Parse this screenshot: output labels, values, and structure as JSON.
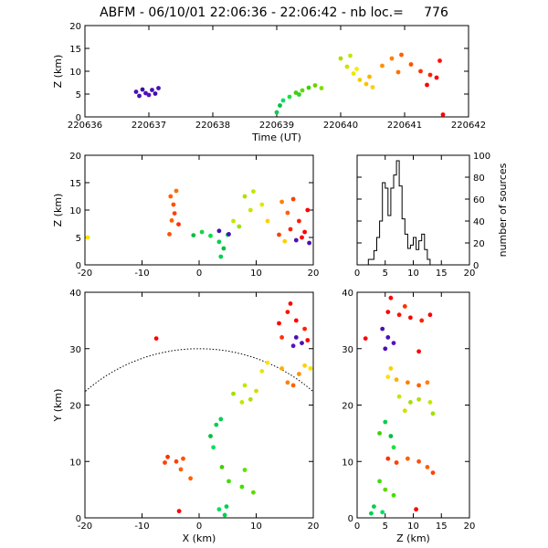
{
  "title": "ABFM - 06/10/01 22:06:36 - 22:06:42 - nb loc.=     776",
  "chart_data": [
    {
      "id": "time-height",
      "type": "scatter",
      "xlabel": "Time (UT)",
      "ylabel": "Z (km)",
      "xlim": [
        220636,
        220642
      ],
      "ylim": [
        0,
        20
      ],
      "xticks": [
        "220636",
        "220637",
        "220638",
        "220639",
        "220640",
        "220641",
        "220642"
      ],
      "yticks": [
        "0",
        "5",
        "10",
        "15",
        "20"
      ],
      "points": [
        [
          220636.8,
          5.5,
          "#4b0fb4"
        ],
        [
          220636.85,
          4.6,
          "#4b0fb4"
        ],
        [
          220636.9,
          6.0,
          "#3d0da8"
        ],
        [
          220636.95,
          5.2,
          "#4b0fb4"
        ],
        [
          220637.0,
          4.8,
          "#5a10c0"
        ],
        [
          220637.05,
          5.9,
          "#4b0fb4"
        ],
        [
          220637.1,
          5.1,
          "#3d0da8"
        ],
        [
          220637.15,
          6.3,
          "#4b0fb4"
        ],
        [
          220639.0,
          1.0,
          "#00d050"
        ],
        [
          220639.05,
          2.5,
          "#00c040"
        ],
        [
          220639.1,
          3.6,
          "#00e060"
        ],
        [
          220639.2,
          4.4,
          "#20e040"
        ],
        [
          220639.3,
          5.3,
          "#40d000"
        ],
        [
          220639.4,
          5.8,
          "#60d800"
        ],
        [
          220639.5,
          6.4,
          "#40d000"
        ],
        [
          220639.6,
          6.9,
          "#6fd000"
        ],
        [
          220639.7,
          6.3,
          "#80e000"
        ],
        [
          220639.35,
          4.9,
          "#30d030"
        ],
        [
          220640.0,
          12.8,
          "#a6e000"
        ],
        [
          220640.1,
          11.0,
          "#d0e000"
        ],
        [
          220640.2,
          9.5,
          "#e8e800"
        ],
        [
          220640.3,
          8.1,
          "#f0d000"
        ],
        [
          220640.4,
          7.2,
          "#ffc000"
        ],
        [
          220640.5,
          6.5,
          "#ffd000"
        ],
        [
          220640.15,
          13.4,
          "#c0e800"
        ],
        [
          220640.25,
          10.5,
          "#f0f000"
        ],
        [
          220640.45,
          8.8,
          "#ffb000"
        ],
        [
          220640.65,
          11.2,
          "#ff9000"
        ],
        [
          220640.8,
          12.8,
          "#ff8000"
        ],
        [
          220640.95,
          13.6,
          "#ff6000"
        ],
        [
          220641.1,
          11.5,
          "#ff5000"
        ],
        [
          220641.25,
          10.0,
          "#ff3000"
        ],
        [
          220641.4,
          9.2,
          "#ff2000"
        ],
        [
          220641.5,
          8.6,
          "#ff0000"
        ],
        [
          220641.55,
          12.3,
          "#ff1000"
        ],
        [
          220640.9,
          9.8,
          "#ff7000"
        ],
        [
          220641.35,
          7.0,
          "#ff0000"
        ],
        [
          220641.6,
          0.5,
          "#ff0000"
        ]
      ]
    },
    {
      "id": "x-height",
      "type": "scatter",
      "xlabel": "",
      "ylabel": "Z (km)",
      "xlim": [
        -20,
        20
      ],
      "ylim": [
        0,
        20
      ],
      "xticks": [
        "-20",
        "-10",
        "0",
        "10",
        "20"
      ],
      "yticks": [
        "0",
        "5",
        "10",
        "15",
        "20"
      ],
      "points": [
        [
          -5,
          12.5,
          "#ff6000"
        ],
        [
          -4.5,
          11.0,
          "#ff5000"
        ],
        [
          -4.3,
          9.4,
          "#ff4000"
        ],
        [
          -4.8,
          8.1,
          "#ff6000"
        ],
        [
          -5.2,
          5.6,
          "#ff5000"
        ],
        [
          -3.6,
          7.4,
          "#ff3000"
        ],
        [
          -4.0,
          13.5,
          "#ff7000"
        ],
        [
          -1.0,
          5.4,
          "#00c040"
        ],
        [
          0.5,
          6.0,
          "#20d040"
        ],
        [
          2.0,
          5.3,
          "#00e040"
        ],
        [
          3.5,
          4.2,
          "#00d050"
        ],
        [
          4.3,
          3.0,
          "#00c040"
        ],
        [
          5.0,
          5.5,
          "#00e060"
        ],
        [
          3.8,
          1.5,
          "#00d050"
        ],
        [
          3.5,
          6.2,
          "#4b0fb4"
        ],
        [
          5.2,
          5.6,
          "#4b0fb4"
        ],
        [
          7.0,
          7.0,
          "#a0e000"
        ],
        [
          6.0,
          8.0,
          "#c0e800"
        ],
        [
          8.0,
          12.5,
          "#b0e000"
        ],
        [
          9.5,
          13.4,
          "#c0e800"
        ],
        [
          11.0,
          11.0,
          "#e0e800"
        ],
        [
          9.0,
          10.0,
          "#d0e000"
        ],
        [
          12.0,
          8.0,
          "#ffd000"
        ],
        [
          14.5,
          11.5,
          "#ff8000"
        ],
        [
          15.5,
          9.5,
          "#ff6000"
        ],
        [
          16.5,
          12.0,
          "#ff4000"
        ],
        [
          17.5,
          8.0,
          "#ff2000"
        ],
        [
          18.5,
          6.0,
          "#ff0000"
        ],
        [
          19.0,
          10.0,
          "#ff0000"
        ],
        [
          16.0,
          6.5,
          "#ff2000"
        ],
        [
          14.0,
          5.5,
          "#ff4000"
        ],
        [
          17.0,
          4.5,
          "#4b0fb4"
        ],
        [
          19.3,
          4.0,
          "#4b0fb4"
        ],
        [
          15.0,
          4.3,
          "#ffd000"
        ],
        [
          18.0,
          5.0,
          "#ff0000"
        ],
        [
          -19.5,
          5.0,
          "#ffe000"
        ]
      ]
    },
    {
      "id": "height-histogram",
      "type": "line",
      "xlabel": "",
      "ylabel": "number of sources",
      "xlim": [
        0,
        20
      ],
      "ylim": [
        0,
        100
      ],
      "xticks": [
        "0",
        "5",
        "10",
        "15",
        "20"
      ],
      "yticks": [
        "0",
        "20",
        "40",
        "60",
        "80",
        "100"
      ],
      "x": [
        2.0,
        3.0,
        3.5,
        4.0,
        4.5,
        5.0,
        5.5,
        6.0,
        6.5,
        7.0,
        7.5,
        8.0,
        8.5,
        9.0,
        9.5,
        10.0,
        10.5,
        11.0,
        11.5,
        12.0,
        12.5,
        13.0
      ],
      "values": [
        5,
        13,
        25,
        40,
        75,
        70,
        45,
        70,
        82,
        95,
        72,
        42,
        28,
        15,
        18,
        25,
        14,
        22,
        28,
        14,
        5,
        0
      ]
    },
    {
      "id": "plan-view",
      "type": "scatter",
      "xlabel": "X (km)",
      "ylabel": "Y (km)",
      "xlim": [
        -20,
        20
      ],
      "ylim": [
        0,
        40
      ],
      "xticks": [
        "-20",
        "-10",
        "0",
        "10",
        "20"
      ],
      "yticks": [
        "0",
        "10",
        "20",
        "30",
        "40"
      ],
      "points": [
        [
          -5.5,
          10.8,
          "#ff3000"
        ],
        [
          -4.0,
          10.0,
          "#ff4000"
        ],
        [
          -3.2,
          8.6,
          "#ff6000"
        ],
        [
          -2.8,
          10.5,
          "#ff5000"
        ],
        [
          -6.0,
          9.8,
          "#ff4000"
        ],
        [
          -1.5,
          7.0,
          "#ff6000"
        ],
        [
          -3.5,
          1.2,
          "#ff0000"
        ],
        [
          2.0,
          14.5,
          "#00c040"
        ],
        [
          3.0,
          16.5,
          "#00d050"
        ],
        [
          2.5,
          12.5,
          "#00e060"
        ],
        [
          3.8,
          17.5,
          "#00d050"
        ],
        [
          4.0,
          9.0,
          "#40d000"
        ],
        [
          5.2,
          6.5,
          "#40e000"
        ],
        [
          7.5,
          5.5,
          "#40e000"
        ],
        [
          9.5,
          4.5,
          "#60d800"
        ],
        [
          4.8,
          2.0,
          "#00d050"
        ],
        [
          3.5,
          1.5,
          "#00e060"
        ],
        [
          4.5,
          0.5,
          "#00d050"
        ],
        [
          8.0,
          8.5,
          "#60e000"
        ],
        [
          6.0,
          22.0,
          "#a0e000"
        ],
        [
          7.5,
          20.5,
          "#c0e800"
        ],
        [
          9.0,
          21.0,
          "#b0e000"
        ],
        [
          10.0,
          22.5,
          "#d0e000"
        ],
        [
          8.0,
          23.5,
          "#c0e800"
        ],
        [
          11.0,
          26.0,
          "#e8e800"
        ],
        [
          12.0,
          27.5,
          "#ffe000"
        ],
        [
          14.5,
          26.5,
          "#ffb000"
        ],
        [
          15.5,
          24.0,
          "#ff8000"
        ],
        [
          16.5,
          23.5,
          "#ff6000"
        ],
        [
          17.5,
          25.5,
          "#ff9000"
        ],
        [
          18.5,
          27.0,
          "#ffd000"
        ],
        [
          19.5,
          26.5,
          "#ffe000"
        ],
        [
          14.0,
          34.5,
          "#ff0000"
        ],
        [
          15.5,
          36.5,
          "#ff1000"
        ],
        [
          17.0,
          35.0,
          "#ff0000"
        ],
        [
          18.5,
          33.5,
          "#ff2000"
        ],
        [
          16.0,
          38.0,
          "#ff0000"
        ],
        [
          19.0,
          31.5,
          "#ff0000"
        ],
        [
          14.5,
          32.0,
          "#ff3000"
        ],
        [
          17.0,
          32.0,
          "#4b0fb4"
        ],
        [
          16.5,
          30.5,
          "#5a10c0"
        ],
        [
          18.0,
          31.0,
          "#4b0fb4"
        ],
        [
          -7.5,
          31.8,
          "#ff0000"
        ]
      ],
      "arc": {
        "center": [
          0,
          0
        ],
        "radius": 30
      }
    },
    {
      "id": "z-y-view",
      "type": "scatter",
      "xlabel": "Z (km)",
      "ylabel": "",
      "xlim": [
        0,
        20
      ],
      "ylim": [
        0,
        40
      ],
      "xticks": [
        "0",
        "5",
        "10",
        "15",
        "20"
      ],
      "yticks": [
        "0",
        "10",
        "20",
        "30",
        "40"
      ],
      "points": [
        [
          6.0,
          39.0,
          "#ff0000"
        ],
        [
          7.5,
          36.0,
          "#ff1000"
        ],
        [
          9.5,
          35.5,
          "#ff0000"
        ],
        [
          11.5,
          35.0,
          "#ff2000"
        ],
        [
          13.0,
          36.0,
          "#ff0000"
        ],
        [
          8.5,
          37.5,
          "#ff3000"
        ],
        [
          5.5,
          36.5,
          "#ff0000"
        ],
        [
          11.0,
          29.5,
          "#ff0000"
        ],
        [
          4.5,
          33.5,
          "#4b0fb4"
        ],
        [
          5.5,
          32.0,
          "#4b0fb4"
        ],
        [
          6.5,
          31.0,
          "#5a10c0"
        ],
        [
          5.0,
          30.0,
          "#4b0fb4"
        ],
        [
          6.0,
          26.5,
          "#ffd000"
        ],
        [
          7.0,
          24.5,
          "#ffb000"
        ],
        [
          9.0,
          24.0,
          "#ff8000"
        ],
        [
          11.0,
          23.5,
          "#ff6000"
        ],
        [
          12.5,
          24.0,
          "#ff8000"
        ],
        [
          5.5,
          25.0,
          "#ffe000"
        ],
        [
          7.5,
          21.5,
          "#c0e800"
        ],
        [
          9.5,
          20.5,
          "#a0e000"
        ],
        [
          11.0,
          21.0,
          "#b0e000"
        ],
        [
          13.0,
          20.5,
          "#c0e800"
        ],
        [
          8.5,
          19.0,
          "#d0e000"
        ],
        [
          13.5,
          18.5,
          "#a0e000"
        ],
        [
          5.0,
          17.0,
          "#00d050"
        ],
        [
          6.0,
          14.5,
          "#00c040"
        ],
        [
          6.5,
          12.5,
          "#20e040"
        ],
        [
          4.0,
          15.0,
          "#40d000"
        ],
        [
          5.5,
          10.5,
          "#ff3000"
        ],
        [
          7.0,
          9.8,
          "#ff4000"
        ],
        [
          9.0,
          10.5,
          "#ff6000"
        ],
        [
          11.0,
          10.0,
          "#ff5000"
        ],
        [
          12.5,
          9.0,
          "#ff6000"
        ],
        [
          13.5,
          8.0,
          "#ff4000"
        ],
        [
          4.0,
          6.5,
          "#40e000"
        ],
        [
          5.0,
          5.0,
          "#60d800"
        ],
        [
          6.5,
          4.0,
          "#40e000"
        ],
        [
          3.0,
          2.0,
          "#00d050"
        ],
        [
          4.5,
          1.0,
          "#00e060"
        ],
        [
          2.5,
          0.8,
          "#00d050"
        ],
        [
          10.5,
          1.5,
          "#ff0000"
        ],
        [
          1.5,
          31.8,
          "#ff0000"
        ]
      ]
    }
  ]
}
